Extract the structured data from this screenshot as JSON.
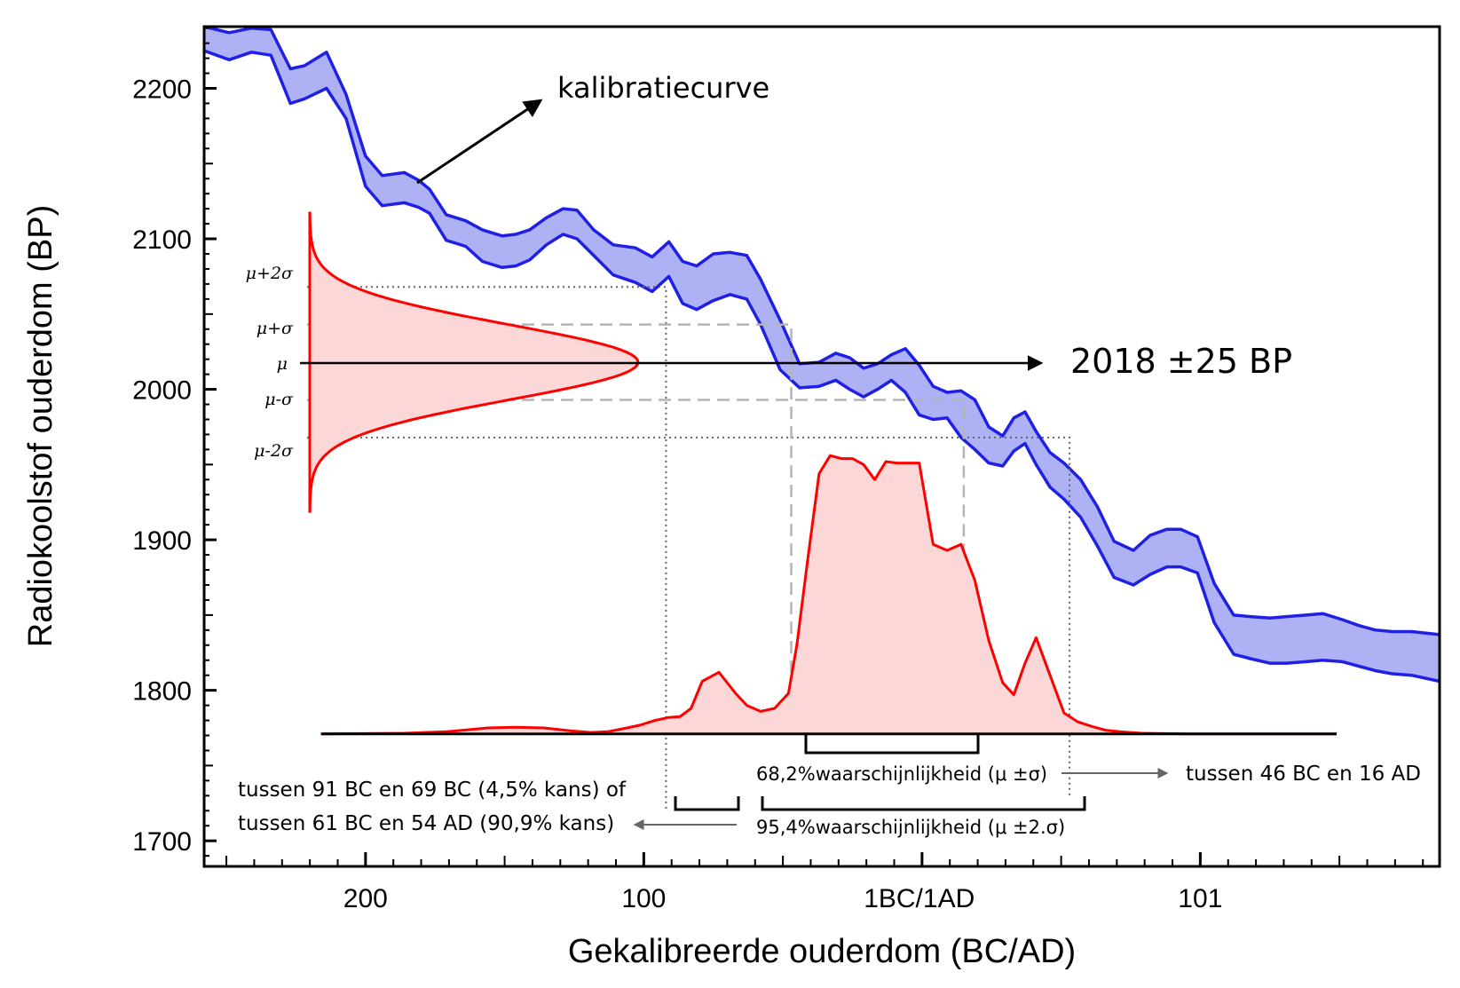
{
  "chart_data": {
    "type": "area",
    "xlabel": "Gekalibreerde ouderdom (BC/AD)",
    "ylabel": "Radiokoolstof ouderdom (BP)",
    "x_unit": "years, negative = BC, positive = AD",
    "xlim": [
      -257,
      187
    ],
    "ylim": [
      1683,
      2241
    ],
    "x_ticks": [
      {
        "value": -199,
        "label": "200"
      },
      {
        "value": -99,
        "label": "100"
      },
      {
        "value": 0,
        "label": "1BC/1AD"
      },
      {
        "value": 101,
        "label": "101"
      }
    ],
    "y_ticks": [
      {
        "value": 1700,
        "label": "1700"
      },
      {
        "value": 1800,
        "label": "1800"
      },
      {
        "value": 1900,
        "label": "1900"
      },
      {
        "value": 2000,
        "label": "2000"
      },
      {
        "value": 2100,
        "label": "2100"
      },
      {
        "value": 2200,
        "label": "2200"
      }
    ],
    "grid": false,
    "calibration_curve": {
      "color": "#1f1fe6",
      "fill": "#aeb2f5",
      "x": [
        -257,
        -248,
        -240,
        -233,
        -226,
        -221,
        -213,
        -206,
        -199,
        -193,
        -185,
        -180,
        -176,
        -170,
        -163,
        -157,
        -150,
        -145,
        -140,
        -134,
        -128,
        -123,
        -117,
        -110,
        -102,
        -96,
        -90,
        -85,
        -80,
        -74,
        -68,
        -62,
        -57,
        -50,
        -43,
        -36,
        -30,
        -25,
        -20,
        -15,
        -10,
        -5,
        0,
        5,
        10,
        15,
        20,
        25,
        30,
        34,
        38,
        42,
        47,
        52,
        58,
        64,
        70,
        77,
        83,
        89,
        94,
        100,
        106,
        113,
        119,
        126,
        132,
        139,
        145,
        152,
        158,
        164,
        170,
        177,
        187
      ],
      "upper": [
        2241,
        2237,
        2240,
        2239,
        2213,
        2215,
        2224,
        2196,
        2155,
        2142,
        2144,
        2139,
        2133,
        2116,
        2112,
        2106,
        2102,
        2103,
        2106,
        2114,
        2120,
        2119,
        2106,
        2096,
        2094,
        2088,
        2098,
        2085,
        2082,
        2090,
        2091,
        2089,
        2073,
        2046,
        2017,
        2018,
        2024,
        2021,
        2014,
        2017,
        2023,
        2027,
        2016,
        2002,
        1998,
        1999,
        1993,
        1975,
        1969,
        1981,
        1985,
        1972,
        1958,
        1951,
        1940,
        1922,
        1899,
        1893,
        1903,
        1907,
        1907,
        1902,
        1871,
        1850,
        1849,
        1848,
        1849,
        1850,
        1851,
        1847,
        1843,
        1840,
        1839,
        1839,
        1837
      ],
      "lower": [
        2225,
        2219,
        2224,
        2222,
        2190,
        2193,
        2200,
        2180,
        2135,
        2122,
        2124,
        2121,
        2117,
        2099,
        2095,
        2085,
        2081,
        2082,
        2086,
        2096,
        2103,
        2100,
        2089,
        2076,
        2071,
        2065,
        2075,
        2057,
        2053,
        2059,
        2063,
        2060,
        2043,
        2013,
        2001,
        2002,
        2006,
        2000,
        1995,
        2000,
        2006,
        1998,
        1983,
        1980,
        1981,
        1968,
        1960,
        1951,
        1949,
        1959,
        1964,
        1950,
        1935,
        1927,
        1915,
        1896,
        1875,
        1870,
        1877,
        1882,
        1882,
        1878,
        1845,
        1824,
        1821,
        1818,
        1818,
        1819,
        1820,
        1819,
        1816,
        1813,
        1811,
        1810,
        1806
      ]
    },
    "measurement": {
      "label": "2018 ±25 BP",
      "mean": 2018,
      "sigma": 25,
      "sigma_labels": {
        "plus2": "μ+2σ",
        "plus1": "μ+σ",
        "mean": "μ",
        "minus1": "μ-σ",
        "minus2": "μ-2σ"
      },
      "color": "#ff0000",
      "fill": "#fcd7d7"
    },
    "calibrated_distribution": {
      "color": "#ff0000",
      "fill": "#fcd7d7",
      "baseline_y": 1771,
      "baseline_x": [
        -215,
        150
      ],
      "x": [
        -215,
        -185,
        -170,
        -155,
        -145,
        -135,
        -125,
        -118,
        -112,
        -105,
        -100,
        -95,
        -90,
        -86,
        -82,
        -78,
        -72,
        -66,
        -62,
        -57,
        -52,
        -47,
        -44,
        -40,
        -36,
        -32,
        -28,
        -24,
        -20,
        -16,
        -12,
        -8,
        -4,
        0,
        5,
        10,
        15,
        20,
        25,
        30,
        34,
        38,
        42,
        47,
        52,
        57,
        62,
        67,
        72,
        80,
        95,
        110,
        130,
        150
      ],
      "y": [
        1771,
        1771.5,
        1772.5,
        1775,
        1775.5,
        1775,
        1773,
        1772,
        1772.5,
        1775,
        1777,
        1780,
        1782,
        1782.5,
        1788,
        1806,
        1812,
        1798,
        1790,
        1786,
        1788,
        1798,
        1830,
        1888,
        1944,
        1956,
        1954,
        1954,
        1950,
        1940,
        1952,
        1951,
        1951,
        1951,
        1897,
        1893,
        1897,
        1873,
        1833,
        1805,
        1797,
        1818,
        1835,
        1810,
        1785,
        1779,
        1776,
        1773.5,
        1772.5,
        1771.5,
        1771,
        1771,
        1771,
        1771
      ]
    },
    "arrow_label": "kalibratiecurve",
    "ranges": [
      {
        "label": "68,2%waarschijnlijkheid (μ ±σ)",
        "from": -46,
        "to": 16,
        "result": "tussen 46 BC en 16 AD"
      },
      {
        "label": "95,4%waarschijnlijkheid (μ ±2.σ)",
        "from": -91,
        "to": 54,
        "result_lines": [
          "tussen 91 BC en 69 BC (4,5% kans) of",
          "tussen 61 BC en 54 AD (90,9% kans)"
        ]
      }
    ]
  }
}
